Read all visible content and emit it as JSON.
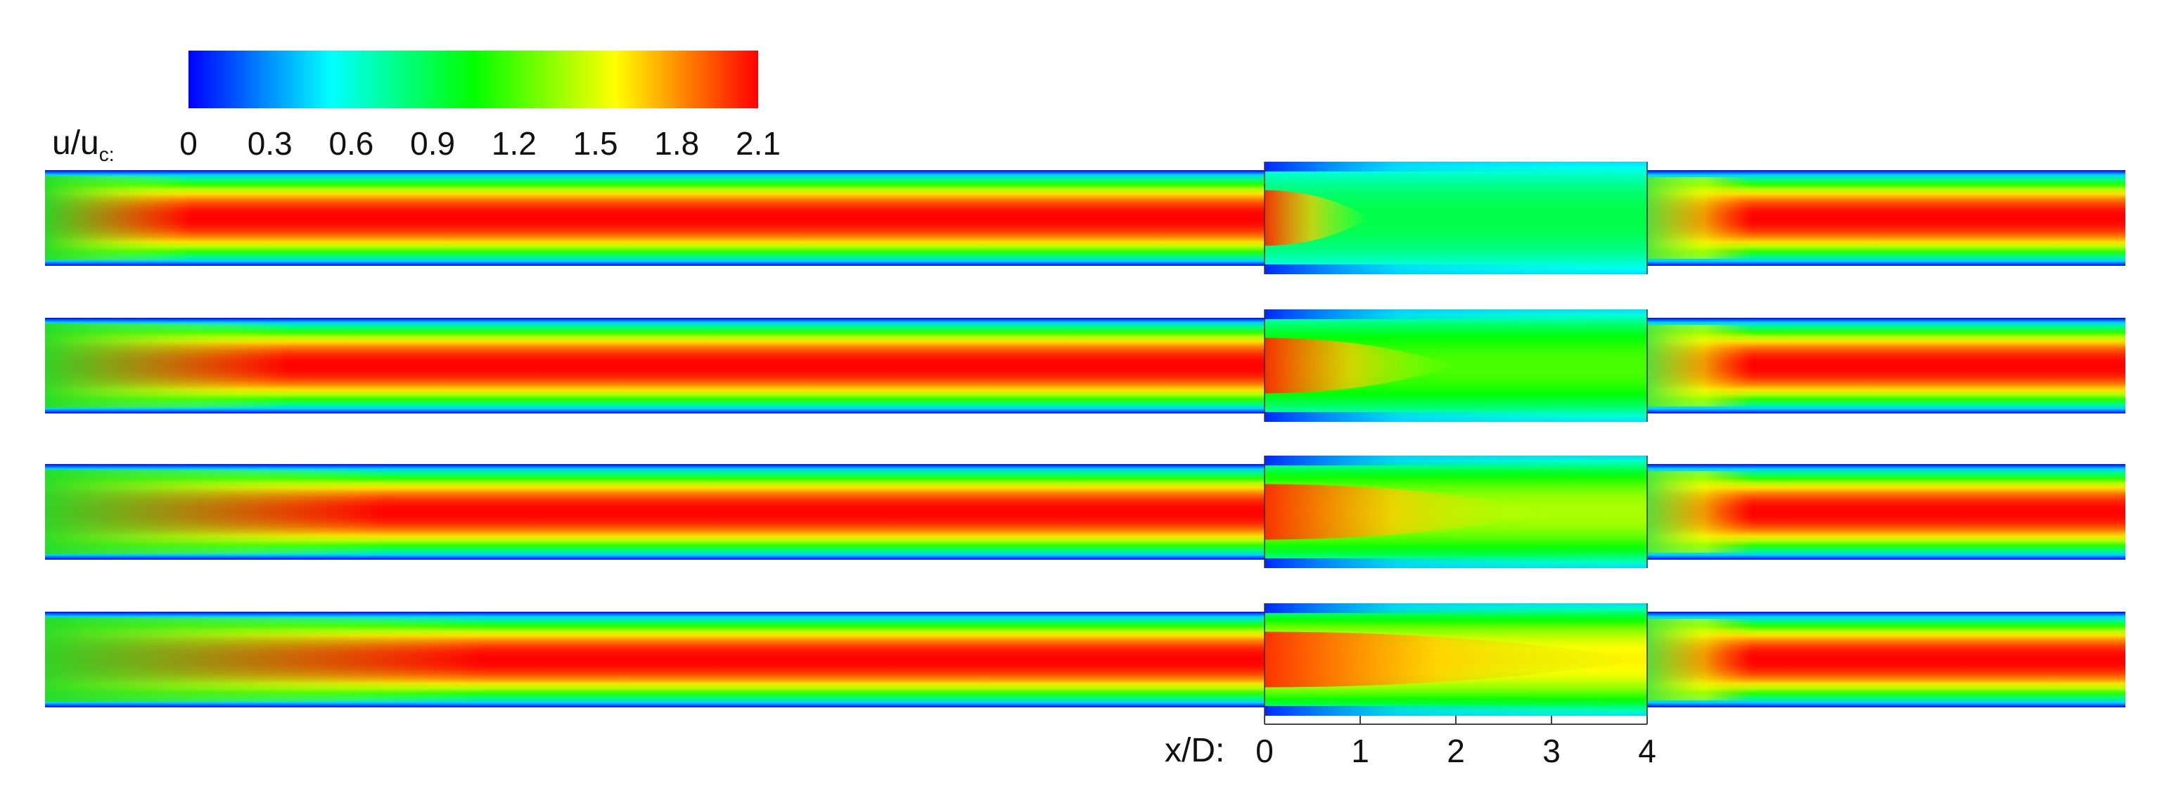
{
  "chart_data": {
    "type": "heatmap",
    "title": "",
    "colorbar": {
      "label_main": "u/u",
      "label_sub": "c:",
      "ticks": [
        "0",
        "0.3",
        "0.6",
        "0.9",
        "1.2",
        "1.5",
        "1.8",
        "2.1"
      ],
      "range": [
        0,
        2.1
      ],
      "colors": [
        "#0000ff",
        "#00ffff",
        "#00ff00",
        "#ffff00",
        "#ff0000"
      ]
    },
    "x_axis": {
      "label": "x/D:",
      "ticks": [
        "0",
        "1",
        "2",
        "3",
        "4"
      ],
      "range": [
        0,
        4
      ]
    },
    "panels": [
      {
        "upstream_centerline_max": 2.1,
        "section_core_reach_xD": 1.1,
        "section_centerline_mean": 0.9,
        "downstream_centerline_max": 2.1
      },
      {
        "upstream_centerline_max": 2.1,
        "section_core_reach_xD": 2.0,
        "section_centerline_mean": 1.2,
        "downstream_centerline_max": 2.1
      },
      {
        "upstream_centerline_max": 2.1,
        "section_core_reach_xD": 3.0,
        "section_centerline_mean": 1.4,
        "downstream_centerline_max": 2.1
      },
      {
        "upstream_centerline_max": 2.1,
        "section_core_reach_xD": 4.0,
        "section_centerline_mean": 1.6,
        "downstream_centerline_max": 2.1
      }
    ]
  }
}
